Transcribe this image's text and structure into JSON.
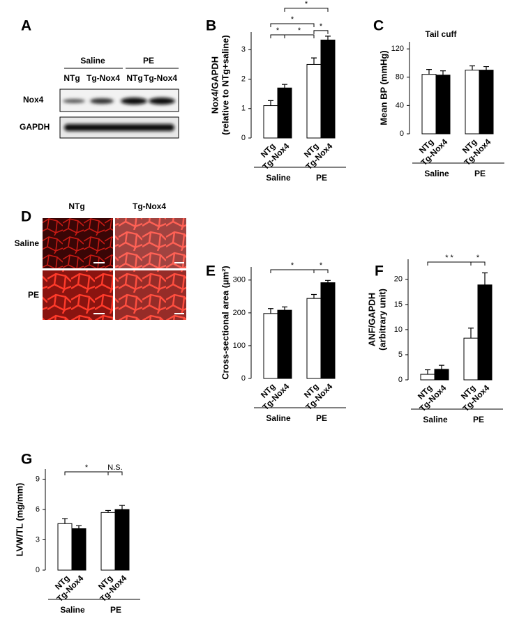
{
  "panel_a": {
    "letter": "A",
    "groups": [
      "Saline",
      "PE"
    ],
    "lanes": [
      "NTg",
      "Tg-Nox4",
      "NTg",
      "Tg-Nox4"
    ],
    "rows": [
      "Nox4",
      "GAPDH"
    ]
  },
  "panel_d": {
    "letter": "D",
    "columns": [
      "NTg",
      "Tg-Nox4"
    ],
    "rows": [
      "Saline",
      "PE"
    ]
  },
  "chart_data": [
    {
      "type": "bar",
      "letter": "B",
      "ylabel": [
        "Nox4/GAPDH",
        "(relative to NTg+saline)"
      ],
      "categories": [
        "NTg",
        "Tg-Nox4",
        "NTg",
        "Tg-Nox4"
      ],
      "groups": [
        "Saline",
        "PE"
      ],
      "values": [
        1.1,
        1.7,
        2.5,
        3.33
      ],
      "errors": [
        0.17,
        0.12,
        0.22,
        0.13
      ],
      "bar_colors": [
        "#ffffff",
        "#000000",
        "#ffffff",
        "#000000"
      ],
      "ylim": [
        0,
        3.6
      ],
      "yticks": [
        0,
        1,
        2,
        3
      ],
      "significance": [
        {
          "from": 0,
          "to": 1,
          "label": "*"
        },
        {
          "from": 1,
          "to": 2,
          "label": "*"
        },
        {
          "from": 0,
          "to": 2,
          "label": "*"
        },
        {
          "from": 2,
          "to": 3,
          "label": "*"
        },
        {
          "from": 1,
          "to": 3,
          "label": "*"
        }
      ]
    },
    {
      "type": "bar",
      "letter": "C",
      "title": "Tail cuff",
      "ylabel": [
        "Mean BP (mmHg)"
      ],
      "categories": [
        "NTg",
        "Tg-Nox4",
        "NTg",
        "Tg-Nox4"
      ],
      "groups": [
        "Saline",
        "PE"
      ],
      "values": [
        84,
        83,
        90,
        90
      ],
      "errors": [
        7,
        6,
        6,
        5
      ],
      "bar_colors": [
        "#ffffff",
        "#000000",
        "#ffffff",
        "#000000"
      ],
      "ylim": [
        0,
        130
      ],
      "yticks": [
        0,
        40,
        80,
        120
      ],
      "significance": []
    },
    {
      "type": "bar",
      "letter": "E",
      "ylabel": [
        "Cross-sectional area (µm²)"
      ],
      "categories": [
        "NTg",
        "Tg-Nox4",
        "NTg",
        "Tg-Nox4"
      ],
      "groups": [
        "Saline",
        "PE"
      ],
      "values": [
        198,
        208,
        244,
        292
      ],
      "errors": [
        15,
        10,
        12,
        7
      ],
      "bar_colors": [
        "#ffffff",
        "#000000",
        "#ffffff",
        "#000000"
      ],
      "ylim": [
        0,
        340
      ],
      "yticks": [
        0,
        100,
        200,
        300
      ],
      "significance": [
        {
          "from": 0,
          "to": 2,
          "label": "*"
        },
        {
          "from": 2,
          "to": 3,
          "label": "*"
        }
      ]
    },
    {
      "type": "bar",
      "letter": "F",
      "ylabel": [
        "ANF/GAPDH",
        "(arbitrary unit)"
      ],
      "categories": [
        "NTg",
        "Tg-Nox4",
        "NTg",
        "Tg-Nox4"
      ],
      "groups": [
        "Saline",
        "PE"
      ],
      "values": [
        1.1,
        2.1,
        8.3,
        18.9
      ],
      "errors": [
        0.9,
        0.8,
        2.0,
        2.4
      ],
      "bar_colors": [
        "#ffffff",
        "#000000",
        "#ffffff",
        "#000000"
      ],
      "ylim": [
        0,
        24
      ],
      "yticks": [
        0,
        5,
        10,
        15,
        20
      ],
      "significance": [
        {
          "from": 0,
          "to": 2,
          "label": "* *"
        },
        {
          "from": 2,
          "to": 3,
          "label": "*"
        }
      ]
    },
    {
      "type": "bar",
      "letter": "G",
      "ylabel": [
        "LVW/TL (mg/mm)"
      ],
      "categories": [
        "NTg",
        "Tg-Nox4",
        "NTg",
        "Tg-Nox4"
      ],
      "groups": [
        "Saline",
        "PE"
      ],
      "values": [
        4.6,
        4.1,
        5.7,
        6.0
      ],
      "errors": [
        0.5,
        0.3,
        0.2,
        0.4
      ],
      "bar_colors": [
        "#ffffff",
        "#000000",
        "#ffffff",
        "#000000"
      ],
      "ylim": [
        0,
        10
      ],
      "yticks": [
        0,
        3,
        6,
        9
      ],
      "significance": [
        {
          "from": 0,
          "to": 2,
          "label": "*"
        },
        {
          "from": 2,
          "to": 3,
          "label": "N.S."
        }
      ]
    }
  ]
}
